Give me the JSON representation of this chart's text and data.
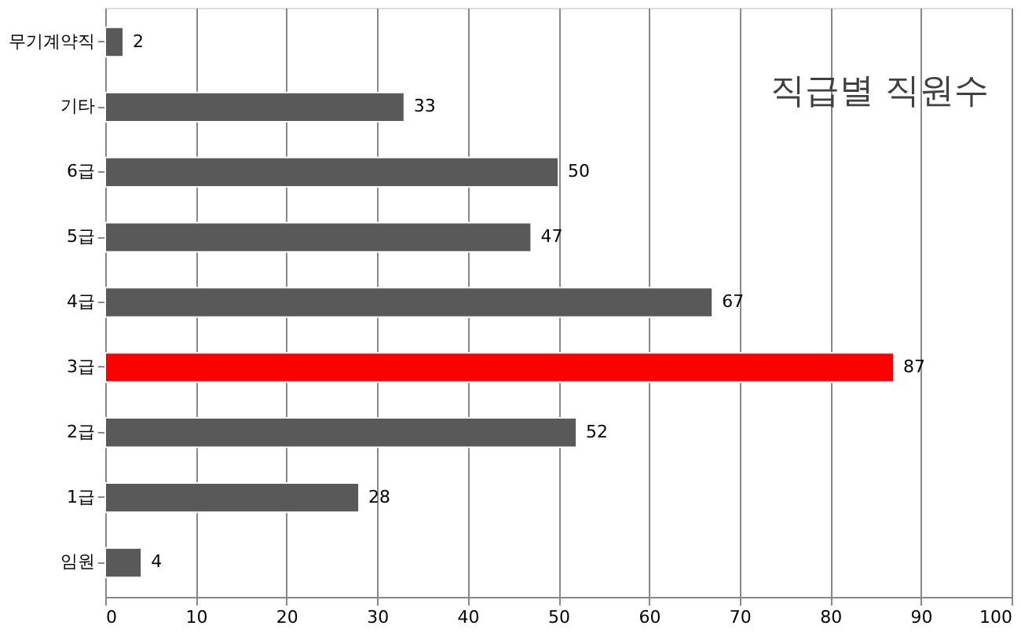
{
  "chart_data": {
    "type": "bar",
    "orientation": "horizontal",
    "title": "직급별 직원수",
    "categories": [
      "무기계약직",
      "기타",
      "6급",
      "5급",
      "4급",
      "3급",
      "2급",
      "1급",
      "임원"
    ],
    "values": [
      2,
      33,
      50,
      47,
      67,
      87,
      52,
      28,
      4
    ],
    "colors": [
      "#595959",
      "#595959",
      "#595959",
      "#595959",
      "#595959",
      "#ff0000",
      "#595959",
      "#595959",
      "#595959"
    ],
    "xlim": [
      0,
      100
    ],
    "xticks": [
      0,
      10,
      20,
      30,
      40,
      50,
      60,
      70,
      80,
      90,
      100
    ],
    "grid": "x",
    "data_labels": true
  }
}
